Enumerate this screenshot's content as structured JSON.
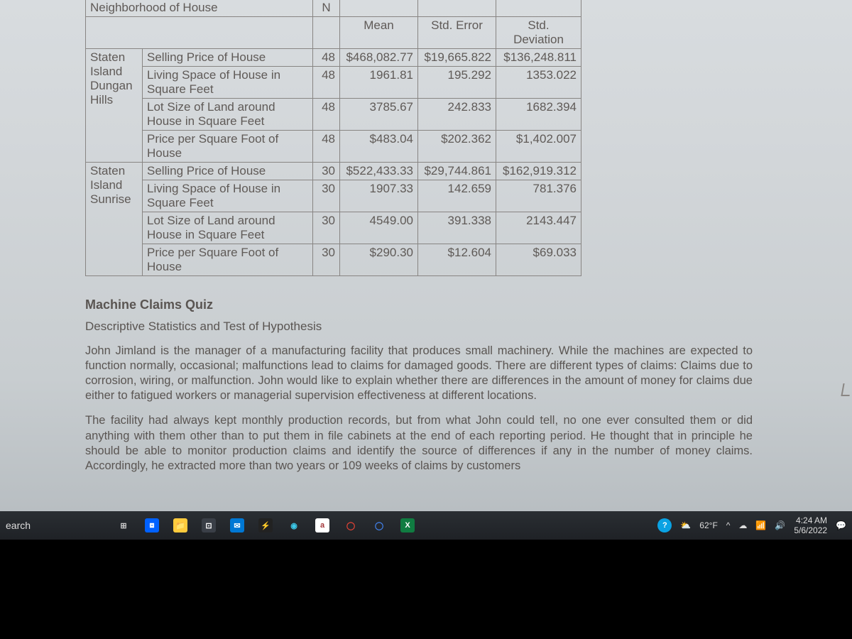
{
  "table": {
    "super_header": "Neighborhood of House",
    "col_n": "N",
    "col_mean": "Mean",
    "col_se": "Std. Error",
    "col_sd": "Std. Deviation",
    "groups": [
      {
        "label_lines": [
          "Staten",
          "Island",
          "Dungan",
          "Hills"
        ],
        "rows": [
          {
            "var": "Selling Price of House",
            "n": "48",
            "mean": "$468,082.77",
            "se": "$19,665.822",
            "sd": "$136,248.811"
          },
          {
            "var": "Living Space of House in Square Feet",
            "n": "48",
            "mean": "1961.81",
            "se": "195.292",
            "sd": "1353.022"
          },
          {
            "var": "Lot Size of Land around House in Square Feet",
            "n": "48",
            "mean": "3785.67",
            "se": "242.833",
            "sd": "1682.394"
          },
          {
            "var": "Price per Square Foot of House",
            "n": "48",
            "mean": "$483.04",
            "se": "$202.362",
            "sd": "$1,402.007"
          }
        ]
      },
      {
        "label_lines": [
          "Staten",
          "Island",
          "Sunrise"
        ],
        "rows": [
          {
            "var": "Selling Price of House",
            "n": "30",
            "mean": "$522,433.33",
            "se": "$29,744.861",
            "sd": "$162,919.312"
          },
          {
            "var": "Living Space of House in Square Feet",
            "n": "30",
            "mean": "1907.33",
            "se": "142.659",
            "sd": "781.376"
          },
          {
            "var": "Lot Size of Land around House in Square Feet",
            "n": "30",
            "mean": "4549.00",
            "se": "391.338",
            "sd": "2143.447"
          },
          {
            "var": "Price per Square Foot of House",
            "n": "30",
            "mean": "$290.30",
            "se": "$12.604",
            "sd": "$69.033"
          }
        ]
      }
    ]
  },
  "quiz": {
    "title": "Machine Claims Quiz",
    "subtitle": "Descriptive Statistics and Test of Hypothesis",
    "p1": "John Jimland is the manager of a manufacturing facility that produces small machinery. While the machines are expected to function normally, occasional; malfunctions lead to claims for damaged goods. There are different types of claims: Claims due to corrosion, wiring, or malfunction. John would like to explain whether there are differences in the amount of money for claims due either to fatigued workers or managerial supervision effectiveness at different locations.",
    "p2": "The facility had always kept monthly production records, but from what John could tell, no one ever consulted them or did anything with them other than to put them in file cabinets at the end of each reporting period. He thought that in principle he should be able to monitor production claims and identify the source of differences if any in the number of money claims. Accordingly, he extracted more than two years or 109 weeks of claims by customers"
  },
  "taskbar": {
    "search_fragment": "earch",
    "icons": [
      {
        "name": "task-view-icon",
        "bg": "transparent",
        "glyph": "⊞",
        "color": "#ccc"
      },
      {
        "name": "dropbox-icon",
        "bg": "#0061ff",
        "glyph": "⧈",
        "color": "#fff"
      },
      {
        "name": "file-explorer-icon",
        "bg": "#ffcb3d",
        "glyph": "📁",
        "color": "#000"
      },
      {
        "name": "store-icon",
        "bg": "#3a3f47",
        "glyph": "⊡",
        "color": "#fff"
      },
      {
        "name": "mail-icon",
        "bg": "#0078d4",
        "glyph": "✉",
        "color": "#fff"
      },
      {
        "name": "power-icon",
        "bg": "#222",
        "glyph": "⚡",
        "color": "#ffee55"
      },
      {
        "name": "edge-icon",
        "bg": "transparent",
        "glyph": "◉",
        "color": "#3cc8e8"
      },
      {
        "name": "access-icon",
        "bg": "#ffffff",
        "glyph": "a",
        "color": "#a4373a"
      },
      {
        "name": "chrome-icon",
        "bg": "transparent",
        "glyph": "◯",
        "color": "#ea4335"
      },
      {
        "name": "chrome2-icon",
        "bg": "transparent",
        "glyph": "◯",
        "color": "#4285f4"
      },
      {
        "name": "excel-icon",
        "bg": "#107c41",
        "glyph": "X",
        "color": "#fff"
      }
    ],
    "tray": {
      "help": "?",
      "weather_temp": "62°F",
      "chevron": "^",
      "cloud": "☁",
      "wifi": "⋮",
      "volume": "🔊",
      "time": "4:24 AM",
      "date": "5/6/2022",
      "notification": "💬"
    }
  },
  "colors": {
    "page_bg_top": "#d8dcdf",
    "page_bg_bottom": "#b5bbbf",
    "table_border": "#888583",
    "text": "#5f5a57",
    "taskbar_bg": "#23262b"
  }
}
